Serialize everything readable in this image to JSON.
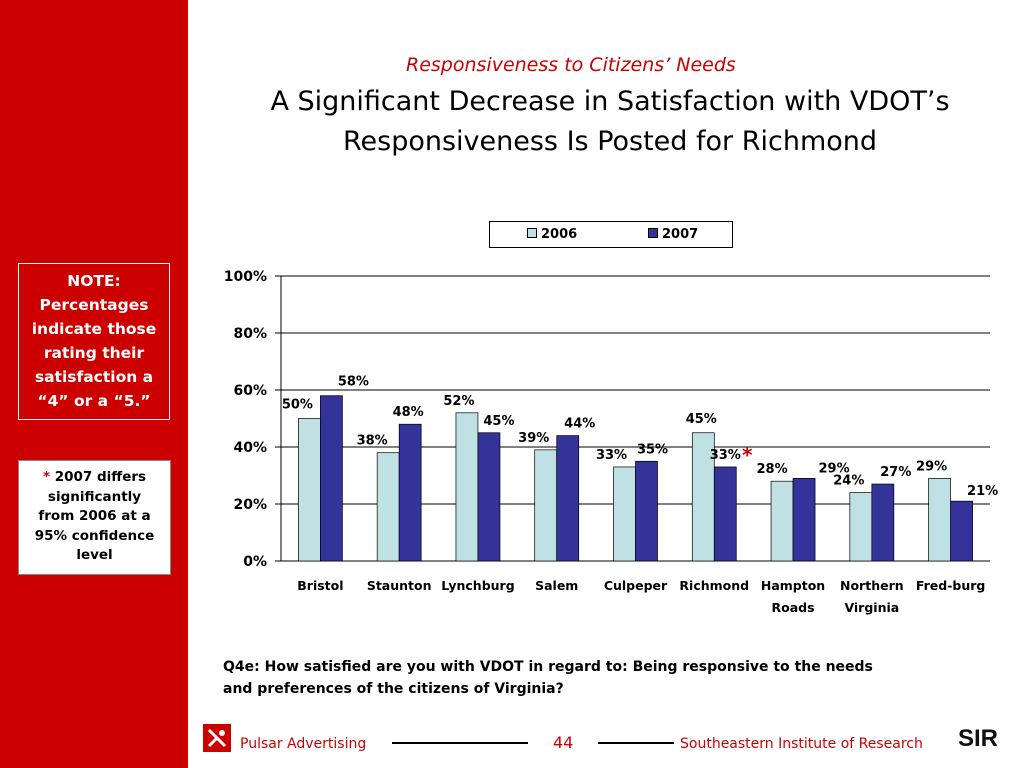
{
  "header": {
    "subtitle": "Responsiveness to Citizens’ Needs",
    "title_line1": "A Significant Decrease in Satisfaction with VDOT’s",
    "title_line2": "Responsiveness Is Posted for Richmond"
  },
  "sidebar": {
    "note_lines": [
      "NOTE:",
      "Percentages",
      "indicate those",
      "rating their",
      "satisfaction a",
      "“4” or a “5.”"
    ],
    "significance": {
      "star": "*",
      "lines": [
        "2007 differs",
        "significantly",
        "from 2006 at a",
        "95% confidence",
        "level"
      ]
    }
  },
  "chart_data": {
    "type": "bar",
    "categories": [
      "Bristol",
      "Staunton",
      "Lynchburg",
      "Salem",
      "Culpeper",
      "Richmond",
      "Hampton Roads",
      "Northern Virginia",
      "Fred-burg"
    ],
    "category_lines": [
      [
        "Bristol"
      ],
      [
        "Staunton"
      ],
      [
        "Lynchburg"
      ],
      [
        "Salem"
      ],
      [
        "Culpeper"
      ],
      [
        "Richmond"
      ],
      [
        "Hampton",
        "Roads"
      ],
      [
        "Northern",
        "Virginia"
      ],
      [
        "Fred-burg"
      ]
    ],
    "series": [
      {
        "name": "2006",
        "values": [
          50,
          38,
          52,
          39,
          33,
          45,
          28,
          24,
          29
        ],
        "color": "#bfe1e3"
      },
      {
        "name": "2007",
        "values": [
          58,
          48,
          45,
          44,
          35,
          33,
          29,
          27,
          21
        ],
        "color": "#333399"
      }
    ],
    "data_labels": [
      [
        "50%",
        "38%",
        "52%",
        "39%",
        "33%",
        "45%",
        "28%",
        "24%",
        "29%"
      ],
      [
        "58%",
        "48%",
        "45%",
        "44%",
        "35%",
        "33%",
        "29%",
        "27%",
        "21%"
      ]
    ],
    "significant_marker": {
      "category": "Richmond",
      "series": "2007",
      "symbol": "*",
      "color": "#cc0000"
    },
    "yticks": [
      "0%",
      "20%",
      "40%",
      "60%",
      "80%",
      "100%"
    ],
    "ylim": [
      0,
      100
    ],
    "grid": true,
    "legend": "top"
  },
  "question": {
    "line1": "Q4e: How satisfied are you with VDOT in regard to: Being responsive to the needs",
    "line2": "and preferences of the citizens of Virginia?"
  },
  "footer": {
    "left_label": "Pulsar Advertising",
    "page_number": "44",
    "right_label": "Southeastern Institute of Research",
    "logo_text": "SIR"
  },
  "colors": {
    "brand_red": "#cc0000",
    "series_2006": "#bfe1e3",
    "series_2007": "#333399"
  }
}
